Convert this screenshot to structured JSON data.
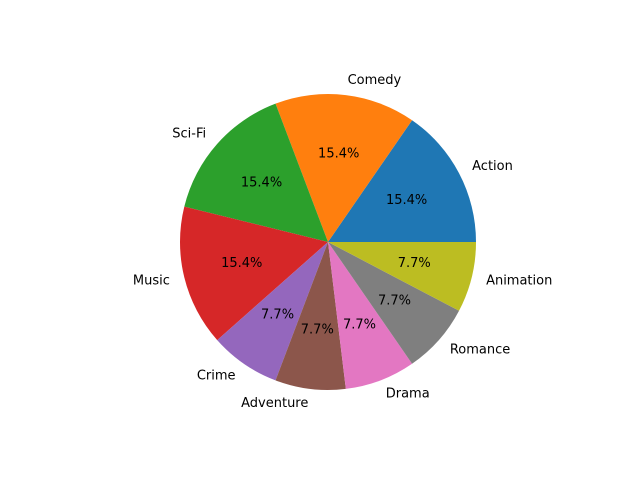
{
  "chart_data": {
    "type": "pie",
    "categories": [
      "Action",
      "Comedy",
      "Sci-Fi",
      "Music",
      "Crime",
      "Adventure",
      "Drama",
      "Romance",
      "Animation"
    ],
    "values": [
      2,
      2,
      2,
      2,
      1,
      1,
      1,
      1,
      1
    ],
    "percent_labels": [
      "15.4%",
      "15.4%",
      "15.4%",
      "15.4%",
      "7.7%",
      "7.7%",
      "7.7%",
      "7.7%",
      "7.7%"
    ],
    "colors": [
      "#1f77b4",
      "#ff7f0e",
      "#2ca02c",
      "#d62728",
      "#9467bd",
      "#8c564b",
      "#e377c2",
      "#7f7f7f",
      "#bcbd22"
    ],
    "start_angle_deg": 0,
    "direction": "counterclockwise",
    "title": "",
    "legend": "none"
  }
}
